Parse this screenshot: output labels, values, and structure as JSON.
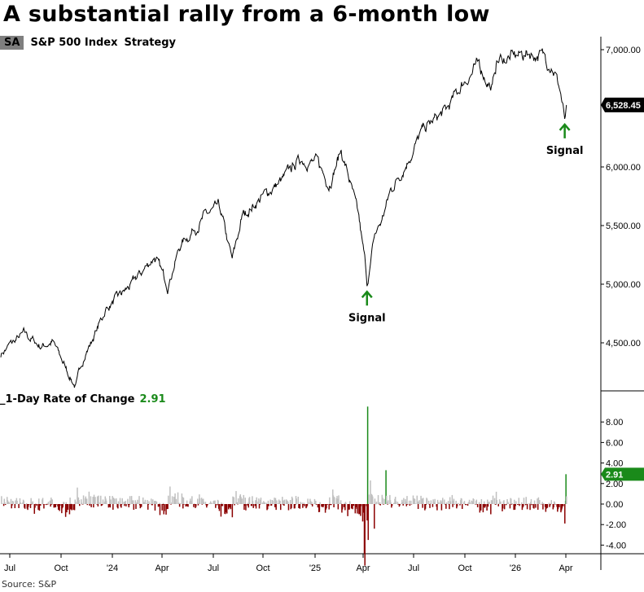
{
  "title": "A substantial rally from a 6-month low",
  "legend": {
    "badge": "SA",
    "series": "S&P 500 Index",
    "extra": "Strategy"
  },
  "roc_legend": {
    "label": "_1-Day Rate of Change",
    "value": "2.91"
  },
  "source": "Source: S&P",
  "colors": {
    "price_line": "#000000",
    "positive_bar": "#c0c0c0",
    "negative_bar": "#8b0000",
    "signal": "#1a8a1a",
    "last_price_box": "#000000"
  },
  "chart_data": [
    {
      "type": "line",
      "series_name": "S&P 500 Index",
      "ylim": [
        4100,
        7100
      ],
      "yticks": [
        "7,000.00",
        "6,000.00",
        "5,500.00",
        "5,000.00",
        "4,500.00"
      ],
      "ytick_values": [
        7000,
        6000,
        5500,
        5000,
        4500
      ],
      "last_value_label": "6,528.45",
      "last_value": 6528.45,
      "waypoints_approx": [
        [
          "2023-06-15",
          4403
        ],
        [
          "2023-06-29",
          4472
        ],
        [
          "2023-07-27",
          4576
        ],
        [
          "2023-08-25",
          4472
        ],
        [
          "2023-09-16",
          4507
        ],
        [
          "2023-10-08",
          4299
        ],
        [
          "2023-10-27",
          4125
        ],
        [
          "2023-11-10",
          4368
        ],
        [
          "2023-12-01",
          4576
        ],
        [
          "2023-12-20",
          4785
        ],
        [
          "2024-02-05",
          4993
        ],
        [
          "2024-03-18",
          5236
        ],
        [
          "2024-04-11",
          4993
        ],
        [
          "2024-05-04",
          5340
        ],
        [
          "2024-06-17",
          5583
        ],
        [
          "2024-07-12",
          5653
        ],
        [
          "2024-08-05",
          5201
        ],
        [
          "2024-08-24",
          5583
        ],
        [
          "2024-09-25",
          5722
        ],
        [
          "2024-11-06",
          5896
        ],
        [
          "2024-12-06",
          6069
        ],
        [
          "2025-01-05",
          6035
        ],
        [
          "2025-01-27",
          5861
        ],
        [
          "2025-02-19",
          6139
        ],
        [
          "2025-03-10",
          5826
        ],
        [
          "2025-03-24",
          5549
        ],
        [
          "2025-04-04",
          5200
        ],
        [
          "2025-04-08",
          4993
        ],
        [
          "2025-04-22",
          5410
        ],
        [
          "2025-05-05",
          5549
        ],
        [
          "2025-05-20",
          5792
        ],
        [
          "2025-06-18",
          6035
        ],
        [
          "2025-07-18",
          6312
        ],
        [
          "2025-08-30",
          6486
        ],
        [
          "2025-09-29",
          6729
        ],
        [
          "2025-10-27",
          6868
        ],
        [
          "2025-11-20",
          6660
        ],
        [
          "2025-11-28",
          6903
        ],
        [
          "2026-01-25",
          6972
        ],
        [
          "2026-02-22",
          6938
        ],
        [
          "2026-03-08",
          6868
        ],
        [
          "2026-03-22",
          6660
        ],
        [
          "2026-03-30",
          6382
        ],
        [
          "2026-04-02",
          6528.45
        ]
      ],
      "annotations": [
        {
          "date": "2025-04-08",
          "text": "Signal"
        },
        {
          "date": "2026-03-30",
          "text": "Signal"
        }
      ]
    },
    {
      "type": "bar",
      "series_name": "_1-Day Rate of Change",
      "ylim": [
        -6,
        10
      ],
      "yticks": [
        "8.00",
        "6.00",
        "4.00",
        "2.00",
        "0.00",
        "-2.00",
        "-4.00"
      ],
      "ytick_values": [
        8,
        6,
        4,
        2,
        0,
        -2,
        -4
      ],
      "last_value": 2.91,
      "notable_bars": [
        [
          "2025-04-03",
          -4.8
        ],
        [
          "2025-04-04",
          -6.0
        ],
        [
          "2025-04-07",
          -0.2
        ],
        [
          "2025-04-08",
          -1.6
        ],
        [
          "2025-04-09",
          9.5
        ],
        [
          "2025-04-10",
          -3.5
        ],
        [
          "2025-04-21",
          -2.4
        ],
        [
          "2025-05-12",
          3.3
        ],
        [
          "2026-04-01",
          2.91
        ]
      ]
    }
  ],
  "xaxis": {
    "ticks": [
      "Jul",
      "Oct",
      "'24",
      "Apr",
      "Jul",
      "Oct",
      "'25",
      "Apr",
      "Jul",
      "Oct",
      "'26",
      "Apr"
    ],
    "tick_dates": [
      "2023-07-01",
      "2023-10-01",
      "2024-01-01",
      "2024-04-01",
      "2024-07-01",
      "2024-10-01",
      "2025-01-01",
      "2025-04-01",
      "2025-07-01",
      "2025-10-01",
      "2026-01-01",
      "2026-04-01"
    ]
  }
}
